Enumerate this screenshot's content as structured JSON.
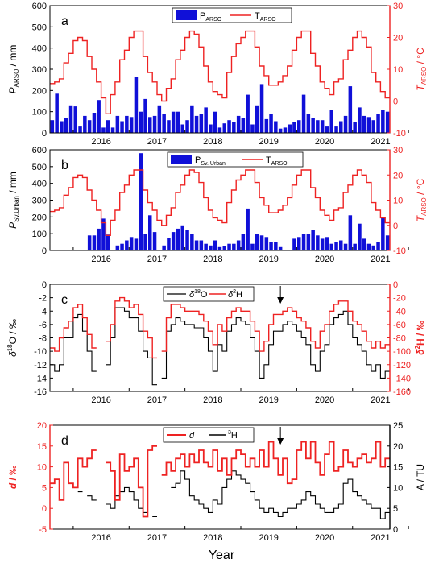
{
  "common": {
    "xlabel": "Year",
    "year_ticks": [
      "2016",
      "2017",
      "2018",
      "2019",
      "2020",
      "2021"
    ],
    "colors": {
      "blue": "#1010d8",
      "red": "#ee2222",
      "black": "#000000"
    }
  },
  "chart_data": [
    {
      "panel": "a",
      "type": "bar+step",
      "left_axis": {
        "label_main": "P",
        "label_sub": "ARSO",
        "label_unit": " / mm",
        "ylim": [
          0,
          600
        ],
        "ticks": [
          "0",
          "100",
          "200",
          "300",
          "400",
          "500",
          "600"
        ]
      },
      "right_axis": {
        "label_main": "T",
        "label_sub": "ARSO",
        "label_unit": " / °C",
        "ylim": [
          -10,
          30
        ],
        "ticks": [
          "-10",
          "0",
          "10",
          "20",
          "30"
        ]
      },
      "legend": [
        {
          "main": "P",
          "sub": "ARSO"
        },
        {
          "main": "T",
          "sub": "ARSO"
        }
      ],
      "series": [
        {
          "name": "PARSO",
          "values": [
            60,
            185,
            55,
            70,
            130,
            125,
            30,
            80,
            60,
            95,
            155,
            25,
            60,
            25,
            80,
            55,
            80,
            75,
            265,
            100,
            160,
            75,
            80,
            130,
            90,
            60,
            100,
            100,
            40,
            60,
            130,
            80,
            90,
            120,
            40,
            100,
            25,
            45,
            60,
            50,
            80,
            70,
            180,
            40,
            130,
            230,
            65,
            90,
            55,
            20,
            25,
            40,
            50,
            60,
            180,
            90,
            70,
            60,
            60,
            30,
            110,
            30,
            55,
            80,
            220,
            50,
            120,
            80,
            75,
            60,
            90,
            110,
            100
          ]
        },
        {
          "name": "TARSO",
          "values": [
            5.5,
            6,
            7,
            12,
            15,
            19,
            20,
            19,
            14,
            10,
            6,
            1,
            -4,
            2,
            6,
            13,
            16,
            20,
            22,
            22,
            14,
            9,
            6,
            2,
            0,
            4,
            7,
            13,
            16,
            20,
            22,
            21,
            17,
            11,
            6,
            3,
            2,
            1,
            9,
            14,
            18,
            20,
            22,
            22,
            17,
            11,
            8,
            5,
            5,
            6,
            8,
            11,
            16,
            20,
            22,
            22,
            15,
            11,
            6,
            4,
            2,
            6,
            7,
            13,
            16,
            20,
            22,
            20,
            17,
            9,
            6,
            3,
            1
          ]
        }
      ]
    },
    {
      "panel": "b",
      "type": "bar+step",
      "left_axis": {
        "label_main": "P",
        "label_sub": "Sv.Urban",
        "label_unit": " / mm",
        "ylim": [
          0,
          600
        ],
        "ticks": [
          "0",
          "100",
          "200",
          "300",
          "400",
          "500",
          "600"
        ]
      },
      "right_axis": {
        "label_main": "T",
        "label_sub": "ARSO",
        "label_unit": " / °C",
        "ylim": [
          -10,
          30
        ],
        "ticks": [
          "-10",
          "0",
          "10",
          "20",
          "30"
        ]
      },
      "legend": [
        {
          "main": "P",
          "sub": "Sv. Urban"
        },
        {
          "main": "T",
          "sub": "ARSO"
        }
      ],
      "series": [
        {
          "name": "PSv.Urban",
          "values": [
            0,
            0,
            0,
            0,
            0,
            0,
            0,
            0,
            90,
            90,
            130,
            190,
            95,
            0,
            30,
            40,
            60,
            80,
            70,
            580,
            100,
            210,
            110,
            0,
            30,
            75,
            110,
            130,
            150,
            120,
            100,
            60,
            60,
            40,
            30,
            60,
            20,
            25,
            40,
            40,
            60,
            100,
            250,
            40,
            100,
            90,
            80,
            50,
            50,
            20,
            0,
            0,
            70,
            80,
            100,
            100,
            120,
            90,
            70,
            80,
            40,
            50,
            60,
            40,
            210,
            40,
            160,
            70,
            40,
            30,
            50,
            200,
            90
          ]
        },
        {
          "name": "TARSO",
          "values": [
            5.5,
            6,
            7,
            12,
            15,
            19,
            20,
            19,
            14,
            10,
            6,
            1,
            -4,
            2,
            6,
            13,
            16,
            20,
            22,
            22,
            14,
            9,
            6,
            2,
            0,
            4,
            7,
            13,
            16,
            20,
            22,
            21,
            17,
            11,
            6,
            3,
            2,
            1,
            9,
            14,
            18,
            20,
            22,
            22,
            17,
            11,
            8,
            5,
            5,
            6,
            8,
            11,
            16,
            20,
            22,
            22,
            15,
            11,
            6,
            4,
            2,
            6,
            7,
            13,
            16,
            20,
            22,
            20,
            17,
            9,
            6,
            3,
            1
          ]
        }
      ]
    },
    {
      "panel": "c",
      "type": "step",
      "left_axis": {
        "label_main": "δ",
        "label_sup": "18",
        "label_rest": "O / ‰",
        "ylim": [
          -16,
          0
        ],
        "ticks": [
          "-16",
          "-14",
          "-12",
          "-10",
          "-8",
          "-6",
          "-4",
          "-2",
          "0"
        ]
      },
      "right_axis": {
        "label_main": "δ",
        "label_sup": "2",
        "label_rest": "H / ‰",
        "ylim": [
          -160,
          0
        ],
        "ticks": [
          "-160",
          "-140",
          "-120",
          "-100",
          "-80",
          "-60",
          "-40",
          "-20",
          "0"
        ]
      },
      "legend": [
        {
          "main": "δ",
          "sup": "18",
          "rest": "O"
        },
        {
          "main": "δ",
          "sup": "2",
          "rest": "H"
        }
      ],
      "annotation": {
        "type": "arrow",
        "x_index": 49
      },
      "series": [
        {
          "name": "δ18O",
          "values": [
            -12,
            -13,
            -12,
            -8,
            -8,
            -5,
            -4.5,
            -7,
            -10,
            -13,
            null,
            null,
            -12,
            -8,
            -3.5,
            -3.5,
            -4,
            -5,
            -5,
            -7,
            -10,
            -11,
            -15,
            null,
            -14,
            -7,
            -6,
            -5,
            -5.5,
            -6,
            -6,
            -6.5,
            -6.5,
            -8,
            -10,
            -13,
            -9,
            -10,
            -7,
            -6,
            -5,
            -5.5,
            -6,
            -8,
            -10,
            -14,
            -12,
            -9,
            -7,
            -7,
            -6,
            -5.5,
            -6,
            -7,
            -8,
            -9,
            -12,
            -13,
            -10,
            -9,
            -6,
            -5,
            -4.5,
            -4,
            -6,
            -8,
            -9,
            -10,
            -12,
            -13,
            -12,
            -14,
            -13
          ]
        },
        {
          "name": "δ2H",
          "values": [
            -95,
            -100,
            -80,
            -65,
            -55,
            -35,
            -30,
            -50,
            -75,
            -95,
            null,
            null,
            -85,
            -60,
            -25,
            -20,
            -25,
            -35,
            -30,
            -45,
            -70,
            -80,
            -110,
            null,
            -100,
            -50,
            -30,
            -30,
            -35,
            -40,
            -40,
            -40,
            -45,
            -55,
            -70,
            -90,
            -60,
            -70,
            -50,
            -40,
            -35,
            -40,
            -40,
            -55,
            -70,
            -100,
            -85,
            -60,
            -45,
            -45,
            -40,
            -35,
            -40,
            -50,
            -55,
            -65,
            -85,
            -95,
            -70,
            -60,
            -40,
            -30,
            -25,
            -25,
            -40,
            -55,
            -60,
            -70,
            -85,
            -95,
            -85,
            -95,
            -90
          ]
        }
      ]
    },
    {
      "panel": "d",
      "type": "step",
      "left_axis": {
        "label_main": "d",
        "label_rest": " / ‰",
        "ylim": [
          -5,
          20
        ],
        "ticks": [
          "-5",
          "0",
          "5",
          "10",
          "15",
          "20"
        ]
      },
      "right_axis": {
        "label_main": "A / TU",
        "ylim": [
          0,
          25
        ],
        "ticks": [
          "0",
          "5",
          "10",
          "15",
          "20",
          "25"
        ]
      },
      "legend": [
        {
          "main": "d"
        },
        {
          "main": "",
          "sup": "3",
          "rest": "H"
        }
      ],
      "annotation": {
        "type": "arrow",
        "x_index": 49
      },
      "series": [
        {
          "name": "d",
          "values": [
            6,
            7,
            2,
            11,
            6,
            5,
            12,
            10,
            12,
            14,
            null,
            null,
            11,
            9,
            2,
            13,
            9,
            10,
            12,
            5,
            -2,
            14,
            15,
            null,
            8,
            11,
            9,
            12,
            13,
            10,
            13,
            11,
            14,
            11,
            10,
            14,
            9,
            12,
            8,
            12,
            14,
            13,
            10,
            12,
            10,
            14,
            10,
            16,
            12,
            8,
            12,
            6,
            7,
            14,
            16,
            12,
            16,
            11,
            8,
            13,
            16,
            9,
            10,
            14,
            11,
            10,
            12,
            13,
            11,
            12,
            16,
            10,
            12
          ]
        },
        {
          "name": "3H",
          "values": [
            null,
            null,
            null,
            null,
            null,
            null,
            9,
            null,
            8,
            7,
            null,
            null,
            6,
            5,
            8,
            9,
            10,
            9,
            7,
            5,
            4,
            null,
            3,
            null,
            null,
            null,
            10,
            11,
            14,
            12,
            8,
            7,
            6,
            5,
            4,
            7,
            6,
            10,
            12,
            14,
            13,
            12,
            11,
            9,
            7,
            5,
            4,
            5,
            4,
            3,
            4,
            5,
            5,
            6,
            7,
            9,
            8,
            6,
            5,
            4,
            4,
            5,
            6,
            11,
            12,
            9,
            8,
            7,
            6,
            5,
            5,
            2.5,
            4
          ]
        }
      ]
    }
  ]
}
